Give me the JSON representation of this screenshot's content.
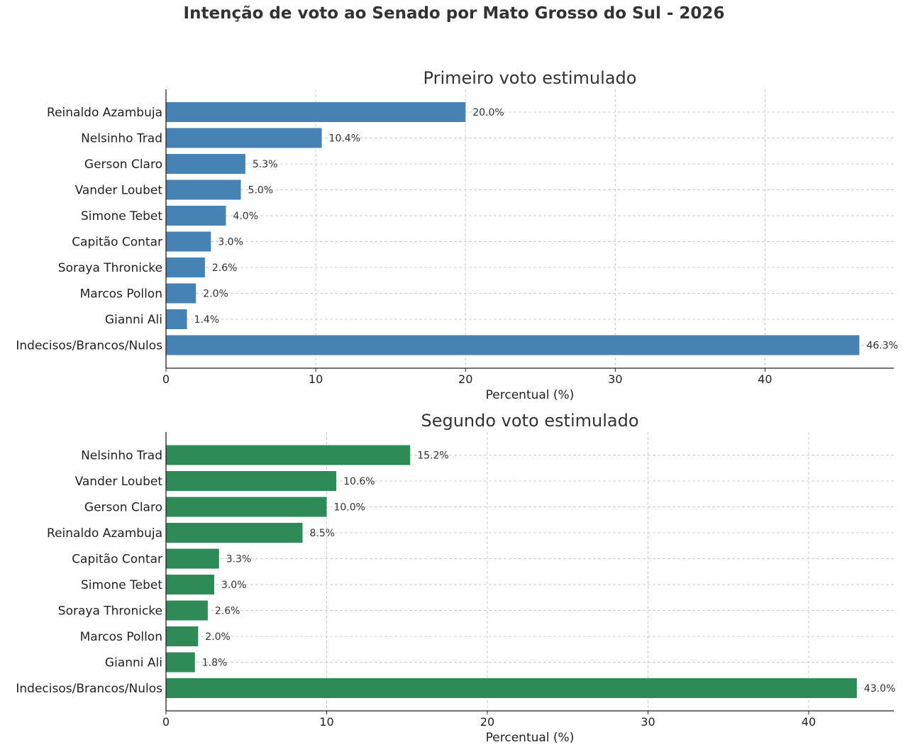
{
  "title": "Intenção de voto ao Senado por Mato Grosso do Sul - 2026",
  "chart_data": [
    {
      "type": "bar",
      "orientation": "horizontal",
      "title": "Primeiro voto estimulado",
      "xlabel": "Percentual (%)",
      "ylabel": "",
      "xlim": [
        0,
        48.6
      ],
      "xticks": [
        0,
        10,
        20,
        30,
        40
      ],
      "grid": true,
      "color": "#4682b4",
      "categories": [
        "Reinaldo Azambuja",
        "Nelsinho Trad",
        "Gerson Claro",
        "Vander Loubet",
        "Simone Tebet",
        "Capitão Contar",
        "Soraya Thronicke",
        "Marcos Pollon",
        "Gianni Ali",
        "Indecisos/Brancos/Nulos"
      ],
      "values": [
        20.0,
        10.4,
        5.3,
        5.0,
        4.0,
        3.0,
        2.6,
        2.0,
        1.4,
        46.3
      ],
      "value_labels": [
        "20.0%",
        "10.4%",
        "5.3%",
        "5.0%",
        "4.0%",
        "3.0%",
        "2.6%",
        "2.0%",
        "1.4%",
        "46.3%"
      ]
    },
    {
      "type": "bar",
      "orientation": "horizontal",
      "title": "Segundo voto estimulado",
      "xlabel": "Percentual (%)",
      "ylabel": "",
      "xlim": [
        0,
        45.3
      ],
      "xticks": [
        0,
        10,
        20,
        30,
        40
      ],
      "grid": true,
      "color": "#2e8b57",
      "categories": [
        "Nelsinho Trad",
        "Vander Loubet",
        "Gerson Claro",
        "Reinaldo Azambuja",
        "Capitão Contar",
        "Simone Tebet",
        "Soraya Thronicke",
        "Marcos Pollon",
        "Gianni Ali",
        "Indecisos/Brancos/Nulos"
      ],
      "values": [
        15.2,
        10.6,
        10.0,
        8.5,
        3.3,
        3.0,
        2.6,
        2.0,
        1.8,
        43.0
      ],
      "value_labels": [
        "15.2%",
        "10.6%",
        "10.0%",
        "8.5%",
        "3.3%",
        "3.0%",
        "2.6%",
        "2.0%",
        "1.8%",
        "43.0%"
      ]
    }
  ]
}
